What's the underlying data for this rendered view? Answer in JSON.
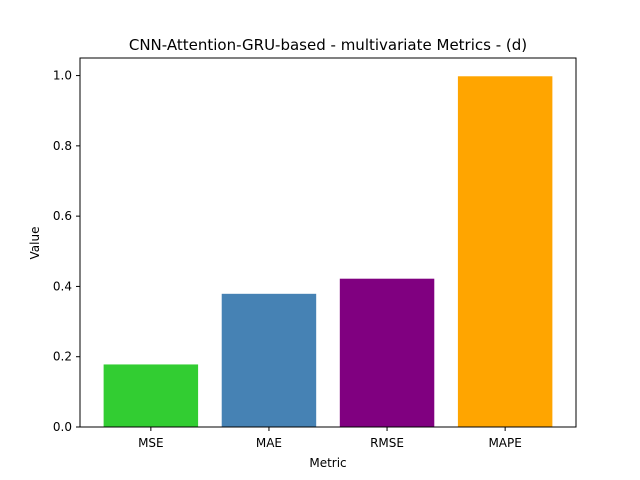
{
  "chart_data": {
    "type": "bar",
    "title": "CNN-Attention-GRU-based - multivariate Metrics -  (d)",
    "xlabel": "Metric",
    "ylabel": "Value",
    "categories": [
      "MSE",
      "MAE",
      "RMSE",
      "MAPE"
    ],
    "values": [
      0.178,
      0.379,
      0.422,
      0.998
    ],
    "colors": [
      "#32cd32",
      "#4682b4",
      "#800080",
      "#ffa500"
    ],
    "ylim": [
      0,
      1.05
    ],
    "yticks": [
      0.0,
      0.2,
      0.4,
      0.6,
      0.8,
      1.0
    ],
    "ytick_labels": [
      "0.0",
      "0.2",
      "0.4",
      "0.6",
      "0.8",
      "1.0"
    ],
    "grid": false,
    "legend": "none"
  }
}
